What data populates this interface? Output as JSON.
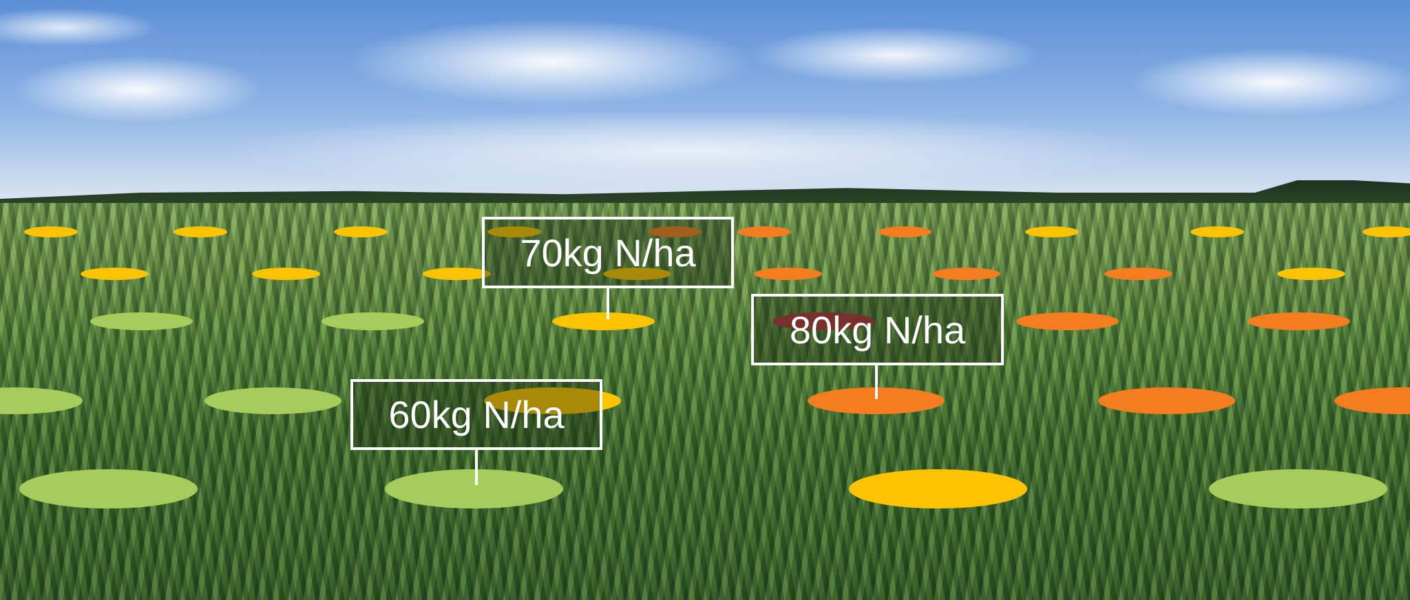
{
  "palette": {
    "green": "#a8cc5c",
    "yellow": "#fdc300",
    "orange": "#f47d20",
    "red": "#b0333a"
  },
  "marker_rows": [
    [
      "yellow",
      "yellow",
      "yellow",
      "yellow",
      "orange",
      "orange",
      "orange",
      "yellow",
      "yellow",
      "yellow"
    ],
    [
      "yellow",
      "yellow",
      "yellow",
      "yellow",
      "orange",
      "orange",
      "orange",
      "yellow"
    ],
    [
      "green",
      "green",
      "yellow",
      "red",
      "orange",
      "orange"
    ],
    [
      "green",
      "green",
      "yellow",
      "orange",
      "orange",
      "orange"
    ],
    [
      "green",
      "green",
      "yellow",
      "green"
    ]
  ],
  "callouts": [
    {
      "label": "70kg N/ha"
    },
    {
      "label": "80kg N/ha"
    },
    {
      "label": "60kg N/ha"
    }
  ]
}
